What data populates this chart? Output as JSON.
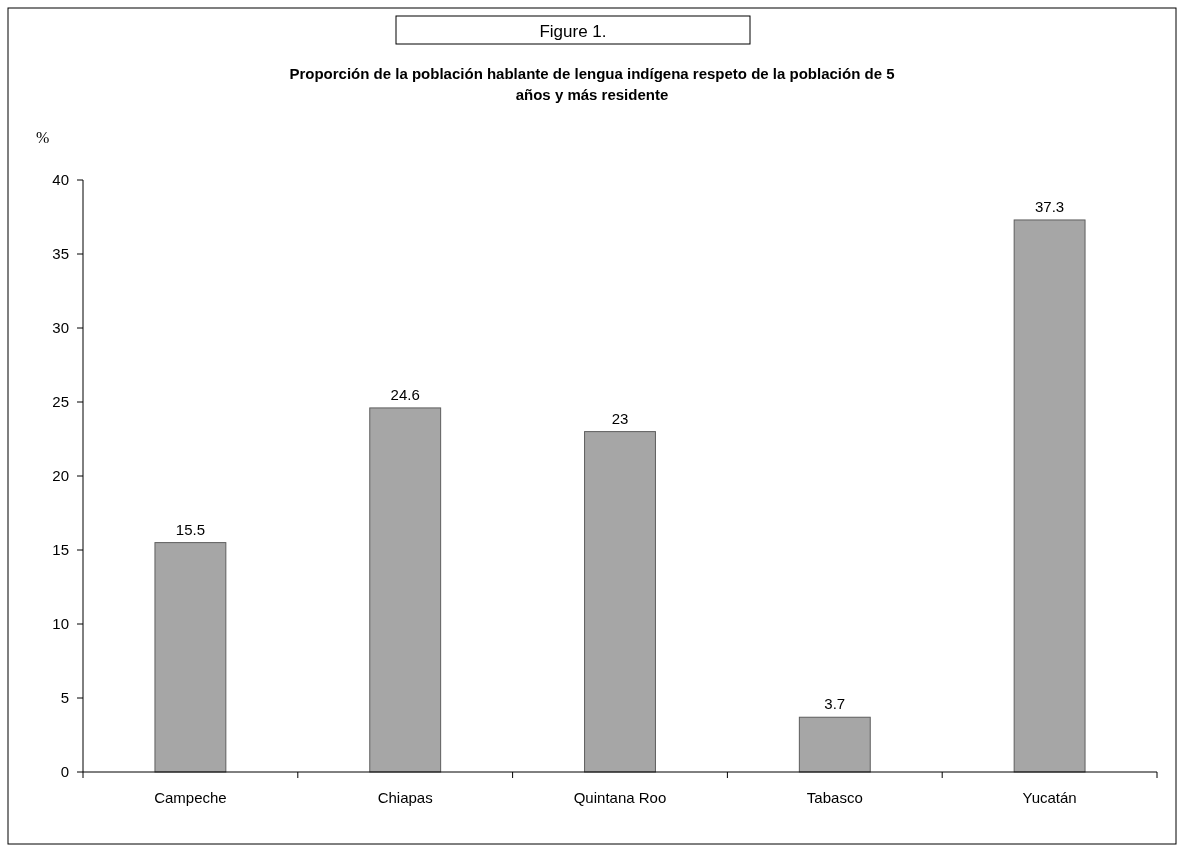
{
  "chart_data": {
    "type": "bar",
    "title": "Figure 1.",
    "subtitle": "Proporción de la población hablante de lengua indígena respeto de la población de 5 años y más residente",
    "ylabel": "%",
    "categories": [
      "Campeche",
      "Chiapas",
      "Quintana Roo",
      "Tabasco",
      "Yucatán"
    ],
    "values": [
      15.5,
      24.6,
      23,
      3.7,
      37.3
    ],
    "color": "#a6a6a6",
    "ylim": [
      0,
      40
    ],
    "yticks": [
      0,
      5,
      10,
      15,
      20,
      25,
      30,
      35,
      40
    ],
    "data_labels": true,
    "grid": false
  }
}
